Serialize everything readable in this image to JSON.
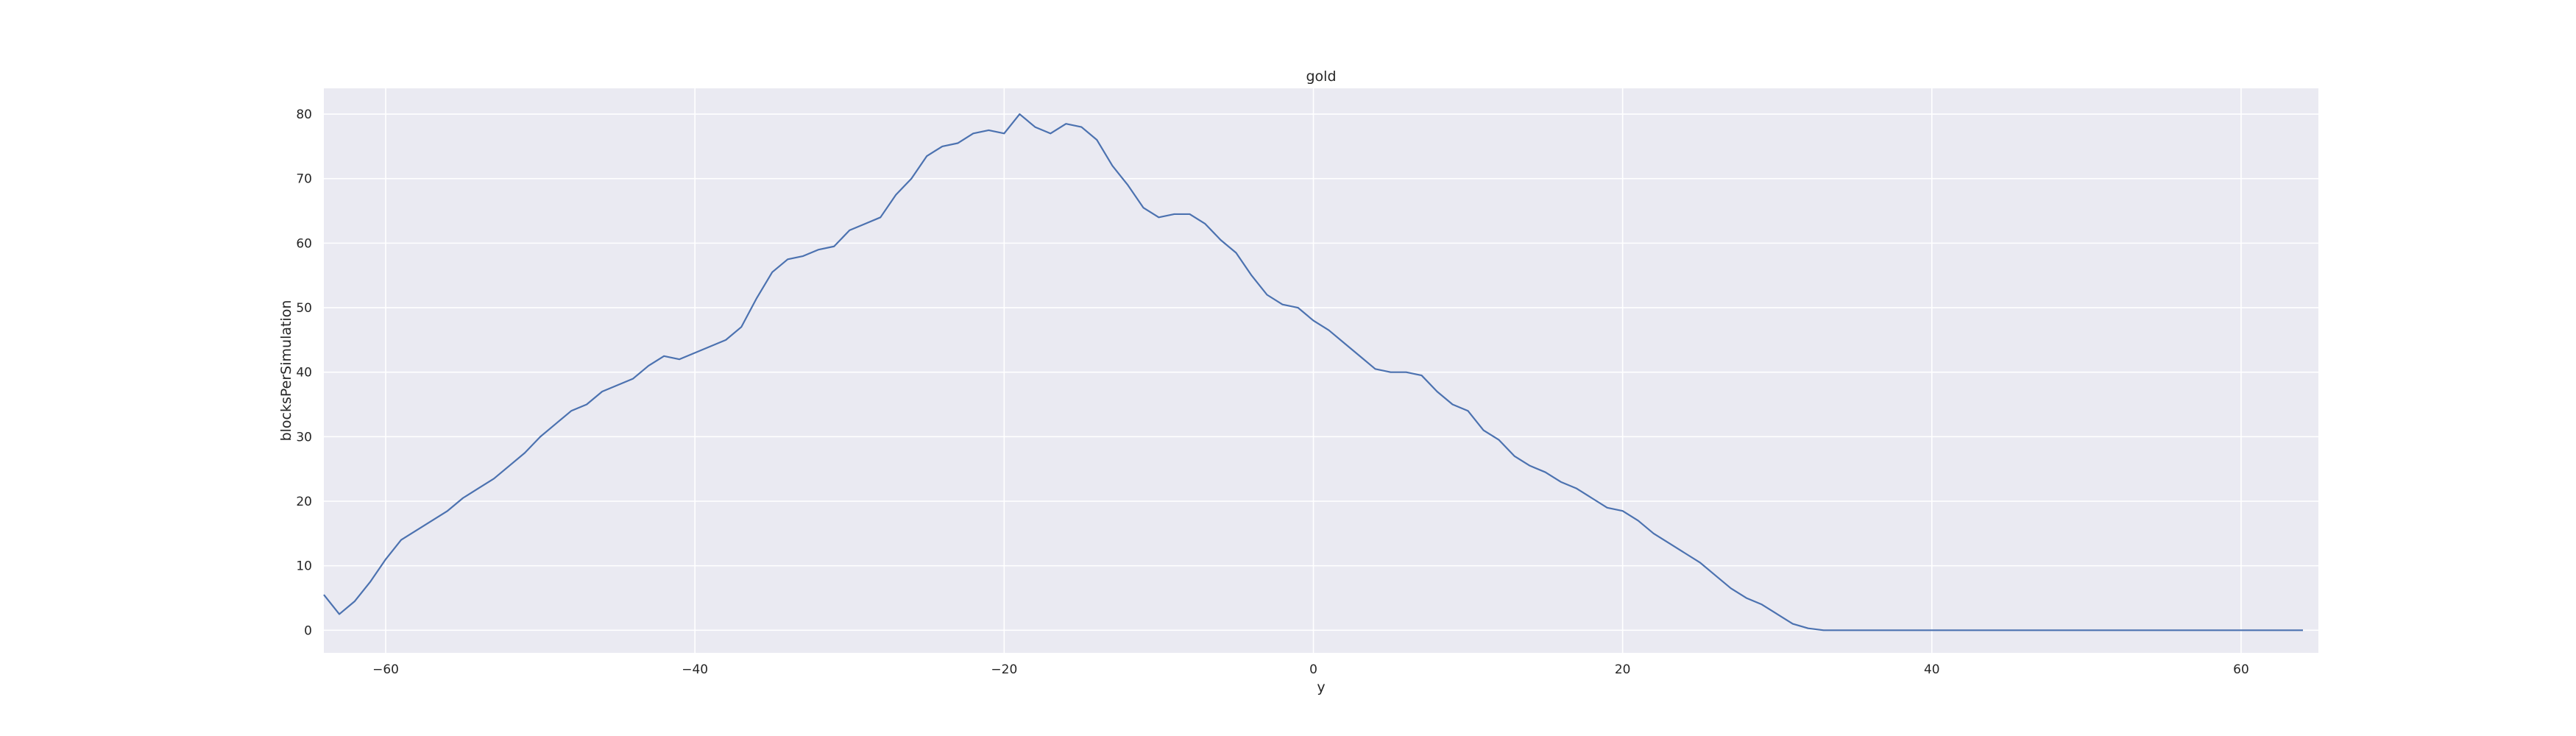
{
  "chart_data": {
    "type": "line",
    "title": "gold",
    "xlabel": "y",
    "ylabel": "blocksPerSimulation",
    "xlim": [
      -64,
      65
    ],
    "ylim": [
      -3.5,
      84
    ],
    "x_ticks": [
      -60,
      -40,
      -20,
      0,
      20,
      40,
      60
    ],
    "y_ticks": [
      0,
      10,
      20,
      30,
      40,
      50,
      60,
      70,
      80
    ],
    "x_tick_labels": [
      "−60",
      "−40",
      "−20",
      "0",
      "20",
      "40",
      "60"
    ],
    "y_tick_labels": [
      "0",
      "10",
      "20",
      "30",
      "40",
      "50",
      "60",
      "70",
      "80"
    ],
    "grid": true,
    "colors": {
      "background": "#eaeaf2",
      "grid": "#ffffff",
      "line": "#4c72b0"
    },
    "series": [
      {
        "x": [
          -64,
          -63,
          -62,
          -61,
          -60,
          -59,
          -58,
          -57,
          -56,
          -55,
          -54,
          -53,
          -52,
          -51,
          -50,
          -49,
          -48,
          -47,
          -46,
          -45,
          -44,
          -43,
          -42,
          -41,
          -40,
          -39,
          -38,
          -37,
          -36,
          -35,
          -34,
          -33,
          -32,
          -31,
          -30,
          -29,
          -28,
          -27,
          -26,
          -25,
          -24,
          -23,
          -22,
          -21,
          -20,
          -19,
          -18,
          -17,
          -16,
          -15,
          -14,
          -13,
          -12,
          -11,
          -10,
          -9,
          -8,
          -7,
          -6,
          -5,
          -4,
          -3,
          -2,
          -1,
          0,
          1,
          2,
          3,
          4,
          5,
          6,
          7,
          8,
          9,
          10,
          11,
          12,
          13,
          14,
          15,
          16,
          17,
          18,
          19,
          20,
          21,
          22,
          23,
          24,
          25,
          26,
          27,
          28,
          29,
          30,
          31,
          32,
          33,
          34,
          35,
          36,
          37,
          38,
          39,
          40,
          41,
          42,
          43,
          44,
          45,
          46,
          47,
          48,
          49,
          50,
          51,
          52,
          53,
          54,
          55,
          56,
          57,
          58,
          59,
          60,
          61,
          62,
          63,
          64
        ],
        "y": [
          5.5,
          2.5,
          4.5,
          7.5,
          11,
          14,
          15.5,
          17,
          18.5,
          20.5,
          22,
          23.5,
          25.5,
          27.5,
          30,
          32,
          34,
          35,
          37,
          38,
          39,
          41,
          42.5,
          42,
          43,
          44,
          45,
          47,
          51.5,
          55.5,
          57.5,
          58,
          59,
          59.5,
          62,
          63,
          64,
          67.5,
          70,
          73.5,
          75,
          75.5,
          77,
          77.5,
          77,
          80,
          78,
          77,
          78.5,
          78,
          76,
          72,
          69,
          65.5,
          64,
          64.5,
          64.5,
          63,
          60.5,
          58.5,
          55,
          52,
          50.5,
          50,
          48,
          46.5,
          44.5,
          42.5,
          40.5,
          40,
          40,
          39.5,
          37,
          35,
          34,
          31,
          29.5,
          27,
          25.5,
          24.5,
          23,
          22,
          20.5,
          19,
          18.5,
          17,
          15,
          13.5,
          12,
          10.5,
          8.5,
          6.5,
          5,
          4,
          2.5,
          1,
          0.3,
          0,
          0,
          0,
          0,
          0,
          0,
          0,
          0,
          0,
          0,
          0,
          0,
          0,
          0,
          0,
          0,
          0,
          0,
          0,
          0,
          0,
          0,
          0,
          0,
          0,
          0,
          0,
          0,
          0,
          0,
          0,
          0
        ]
      }
    ]
  }
}
